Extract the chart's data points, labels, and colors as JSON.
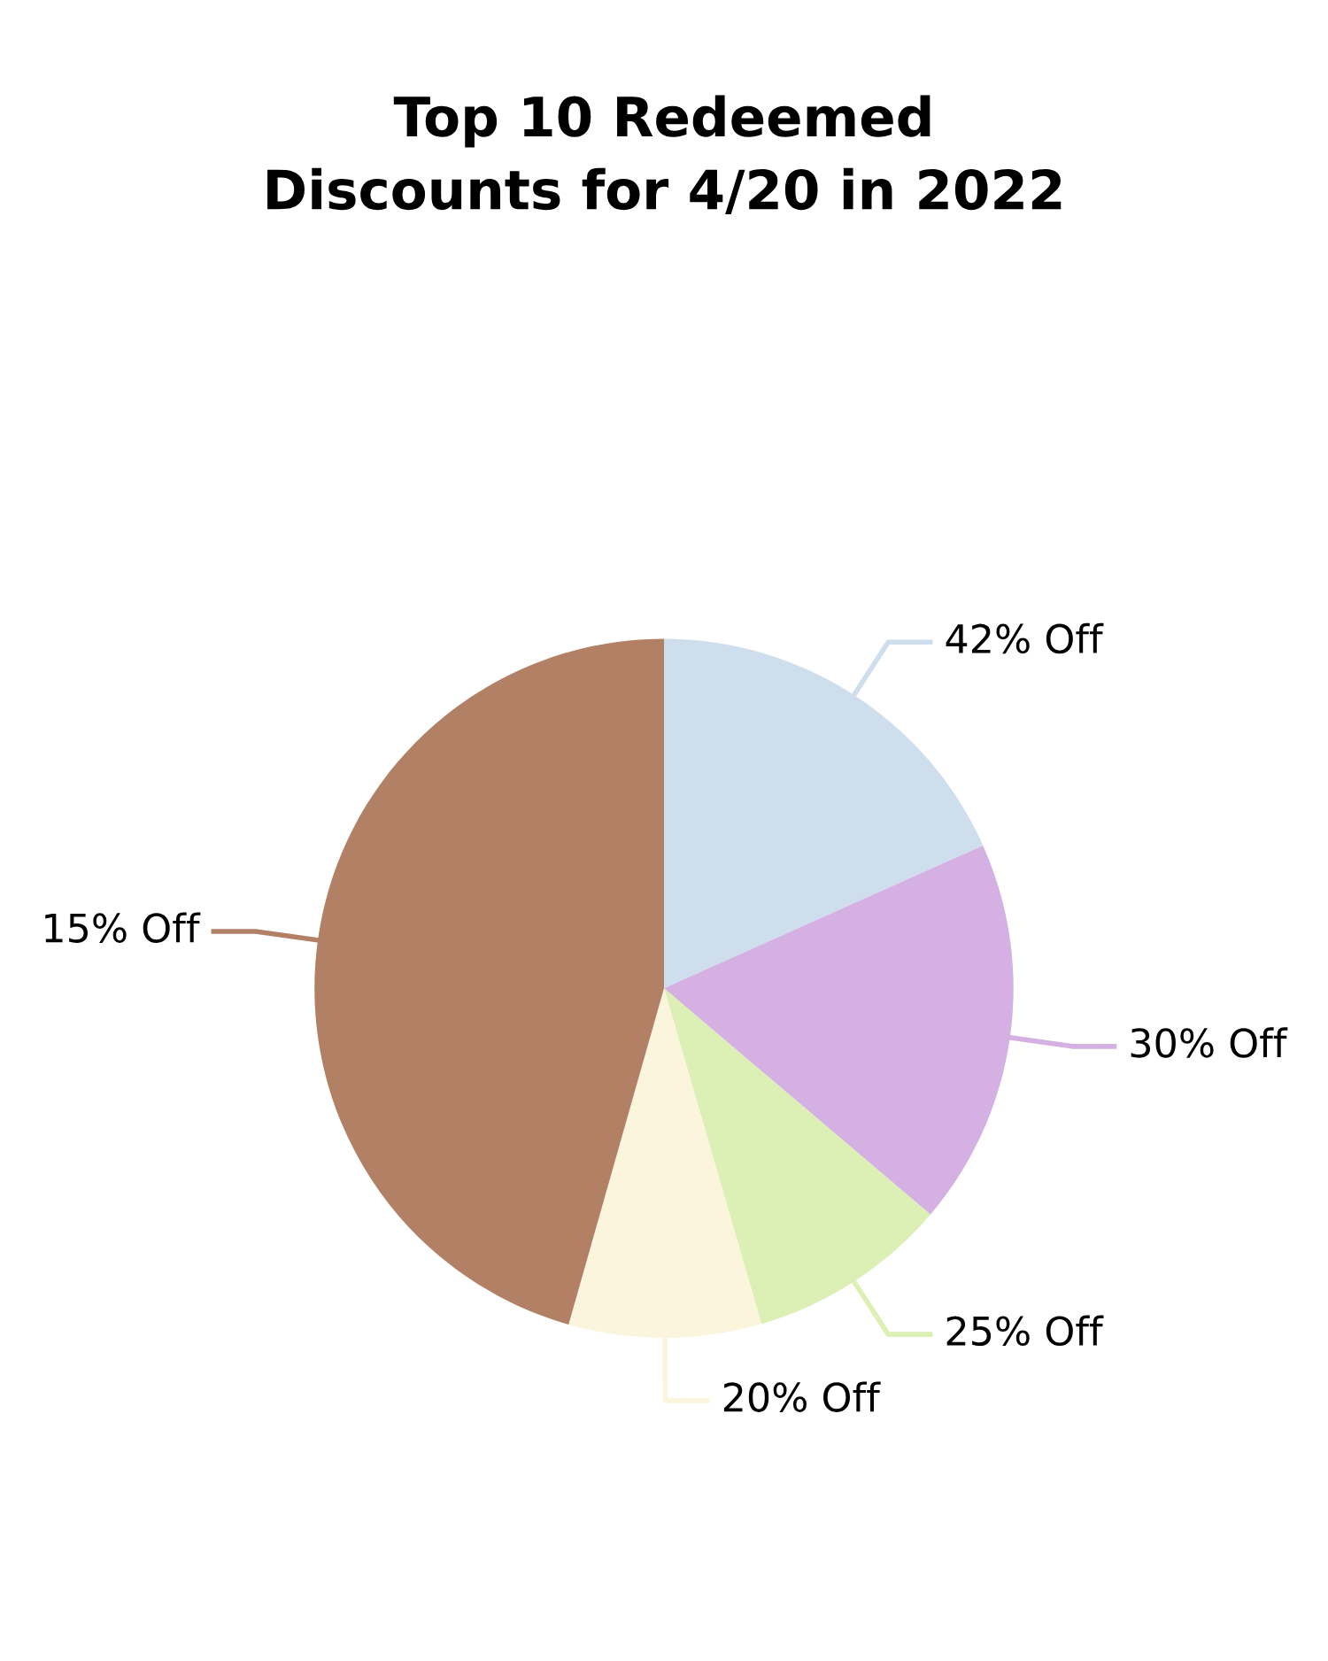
{
  "chart_data": {
    "type": "pie",
    "title": "Top 10 Redeemed\nDiscounts for 4/20 in 2022",
    "categories": [
      "42% Off",
      "30% Off",
      "25% Off",
      "20% Off",
      "15% Off"
    ],
    "values": [
      18.3,
      17.9,
      9.3,
      8.9,
      45.6
    ],
    "colors": [
      "#cfdeec",
      "#d4b0e3",
      "#dcefb5",
      "#fbf5dd",
      "#b28165"
    ],
    "legend": false
  }
}
